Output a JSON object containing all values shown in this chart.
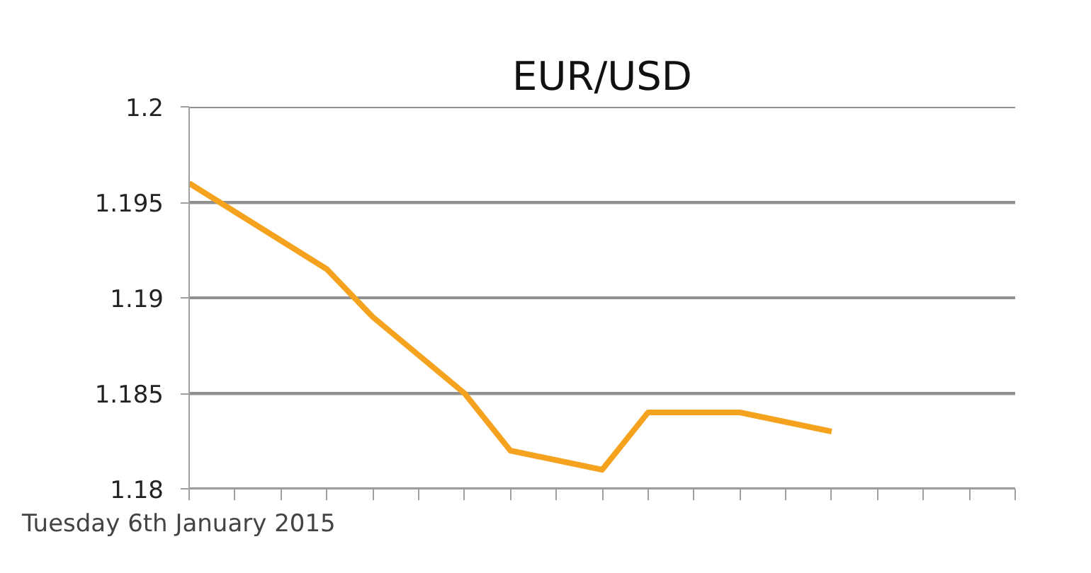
{
  "chart_data": {
    "type": "line",
    "title": "EUR/USD",
    "xlabel": "Tuesday 6th January 2015",
    "categories": [
      null,
      null,
      null,
      null,
      null,
      null,
      null,
      null,
      null,
      null,
      null,
      null,
      null,
      null,
      null,
      null,
      null,
      null,
      null
    ],
    "series": [
      {
        "color": "#f5a31f",
        "values": [
          1.196,
          1.1945,
          1.193,
          1.1915,
          1.189,
          1.187,
          1.185,
          1.182,
          1.1815,
          1.181,
          1.184,
          1.184,
          1.184,
          1.1835,
          1.183,
          null,
          null,
          null,
          null
        ]
      }
    ],
    "ylim": [
      1.18,
      1.2
    ],
    "yticks": [
      1.18,
      1.185,
      1.19,
      1.195,
      1.2
    ],
    "grid": "y",
    "marker": "none",
    "line_style": "solid"
  }
}
